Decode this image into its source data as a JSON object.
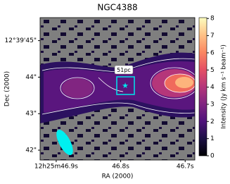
{
  "chart_data": {
    "type": "image",
    "title": "NGC4388",
    "x_label": "RA (2000)",
    "y_label": "Dec (2000)",
    "xlim": [
      46.925,
      46.685
    ],
    "xticks": [
      {
        "value": 46.9,
        "label": "12h25m46.9s"
      },
      {
        "value": 46.8,
        "label": "46.8s"
      },
      {
        "value": 46.7,
        "label": "46.7s"
      }
    ],
    "ylim": [
      41.73,
      45.63
    ],
    "yticks": [
      {
        "value": 42,
        "label": "42\""
      },
      {
        "value": 43,
        "label": "43\""
      },
      {
        "value": 44,
        "label": "44\""
      },
      {
        "value": 45,
        "label": "12°39'45\""
      }
    ],
    "colorbar": {
      "label": "Intensity (Jy km s⁻¹ beam⁻¹)",
      "lim": [
        0,
        8.05
      ],
      "ticks": [
        0,
        1,
        2,
        3,
        4,
        5,
        6,
        7,
        8
      ],
      "colormap": [
        "#000004",
        "#1c1044",
        "#4f127b",
        "#812581",
        "#b5367a",
        "#e55064",
        "#fb8761",
        "#fec287",
        "#fcfdbf"
      ]
    },
    "annotations": [
      "51pc"
    ]
  }
}
